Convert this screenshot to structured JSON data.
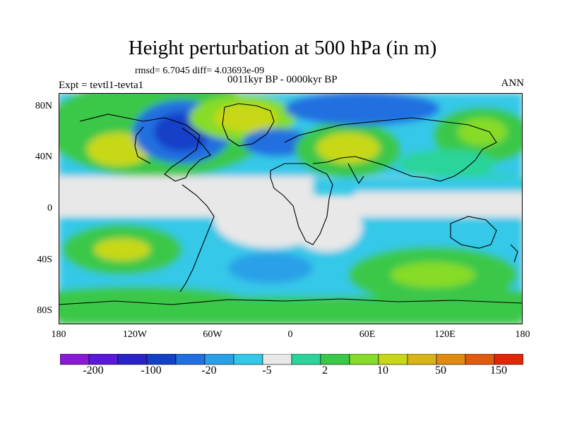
{
  "title": "Height perturbation at 500 hPa (in m)",
  "stats": {
    "rmsd_line": "rmsd= 6.7045 diff= 4.03693e-09"
  },
  "subtitle": "0011kyr BP - 0000kyr BP",
  "experiment": "Expt = tevtl1-tevta1",
  "season": "ANN",
  "axes": {
    "lat_labels": [
      "80N",
      "40N",
      "0",
      "40S",
      "80S"
    ],
    "lon_labels": [
      "180",
      "120W",
      "60W",
      "0",
      "60E",
      "120E",
      "180"
    ]
  },
  "colorbar": {
    "colors": [
      "#8a1ad8",
      "#5a18d8",
      "#2a24c8",
      "#1440c8",
      "#2070e0",
      "#2aa0e8",
      "#34c8e8",
      "#e8e8e8",
      "#2ad49a",
      "#3ac848",
      "#86dc28",
      "#c8d818",
      "#d8b418",
      "#e08a10",
      "#e05a10",
      "#e02808"
    ],
    "labels": [
      "-200",
      "-100",
      "-20",
      "-5",
      "2",
      "10",
      "50",
      "150"
    ]
  },
  "chart_data": {
    "type": "heatmap",
    "title": "Height perturbation at 500 hPa (in m)",
    "variable": "500 hPa geopotential height perturbation",
    "units": "m",
    "comparison": "0011kyr BP - 0000kyr BP",
    "experiment": "tevtl1-tevta1",
    "season": "ANN",
    "rmsd": 6.7045,
    "diff": 4.03693e-09,
    "x_range": [
      -180,
      180
    ],
    "y_range": [
      -90,
      90
    ],
    "features": [
      {
        "region": "Greenland / North Atlantic",
        "lon": -45,
        "lat": 72,
        "sign": "positive",
        "approx_value": 10
      },
      {
        "region": "Central Asia / Middle East",
        "lon": 50,
        "lat": 45,
        "sign": "positive",
        "approx_value": 10
      },
      {
        "region": "Canada / Labrador",
        "lon": -80,
        "lat": 58,
        "sign": "negative",
        "approx_value": -20
      },
      {
        "region": "Siberia",
        "lon": 65,
        "lat": 72,
        "sign": "negative",
        "approx_value": -20
      },
      {
        "region": "Southern Ocean 160W",
        "lon": -160,
        "lat": -60,
        "sign": "positive",
        "approx_value": 10
      },
      {
        "region": "Southern Indian Ocean",
        "lon": 120,
        "lat": -55,
        "sign": "positive",
        "approx_value": 10
      },
      {
        "region": "South Pacific subtropics",
        "lon": -140,
        "lat": -35,
        "sign": "positive",
        "approx_value": 10
      }
    ]
  }
}
